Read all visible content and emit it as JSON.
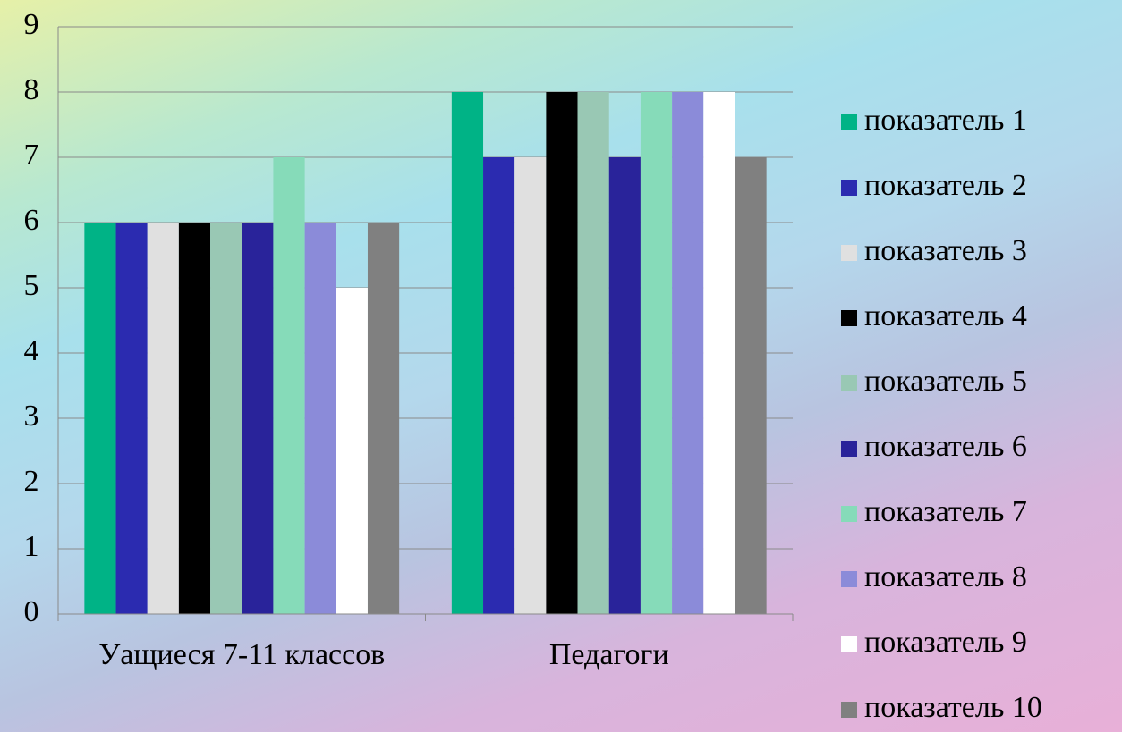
{
  "chart_data": {
    "type": "bar",
    "categories": [
      "Уащиеся 7-11 классов",
      "Педагоги"
    ],
    "series": [
      {
        "name": "показатель 1",
        "color": "#00b386",
        "values": [
          6,
          8
        ]
      },
      {
        "name": "показатель 2",
        "color": "#2b2bb0",
        "values": [
          6,
          7
        ]
      },
      {
        "name": "показатель 3",
        "color": "#e0e0e0",
        "values": [
          6,
          7
        ]
      },
      {
        "name": "показатель 4",
        "color": "#000000",
        "values": [
          6,
          8
        ]
      },
      {
        "name": "показатель 5",
        "color": "#99c8b4",
        "values": [
          6,
          8
        ]
      },
      {
        "name": "показатель 6",
        "color": "#29239a",
        "values": [
          6,
          7
        ]
      },
      {
        "name": "показатель 7",
        "color": "#86dbb9",
        "values": [
          7,
          8
        ]
      },
      {
        "name": "показатель 8",
        "color": "#8b8bd9",
        "values": [
          6,
          8
        ]
      },
      {
        "name": "показатель 9",
        "color": "#ffffff",
        "values": [
          5,
          8
        ]
      },
      {
        "name": "показатель 10",
        "color": "#808080",
        "values": [
          6,
          7
        ]
      }
    ],
    "ylim": [
      0,
      9
    ],
    "yticks": [
      0,
      1,
      2,
      3,
      4,
      5,
      6,
      7,
      8,
      9
    ],
    "grid": true,
    "legend": "right"
  }
}
